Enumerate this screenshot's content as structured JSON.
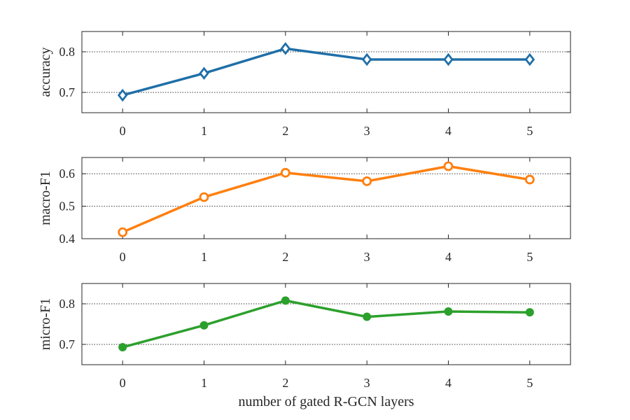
{
  "chart_data": [
    {
      "type": "line",
      "ylabel": "accuracy",
      "xlabel": "",
      "x": [
        0,
        1,
        2,
        3,
        4,
        5
      ],
      "x_ticks": [
        0,
        1,
        2,
        3,
        4,
        5
      ],
      "xlim": [
        -0.5,
        5.5
      ],
      "ylim": [
        0.65,
        0.85
      ],
      "y_ticks": [
        0.7,
        0.8
      ],
      "y_tick_labels": [
        "0.7",
        "0.8"
      ],
      "grid": "horizontal dotted",
      "series": [
        {
          "values": [
            0.693,
            0.747,
            0.808,
            0.781,
            0.781,
            0.781
          ],
          "color": "#1f6fa8",
          "marker": "diamond-open"
        }
      ]
    },
    {
      "type": "line",
      "ylabel": "macro-F1",
      "xlabel": "",
      "x": [
        0,
        1,
        2,
        3,
        4,
        5
      ],
      "x_ticks": [
        0,
        1,
        2,
        3,
        4,
        5
      ],
      "xlim": [
        -0.5,
        5.5
      ],
      "ylim": [
        0.4,
        0.65
      ],
      "y_ticks": [
        0.4,
        0.5,
        0.6
      ],
      "y_tick_labels": [
        "0.4",
        "0.5",
        "0.6"
      ],
      "grid": "horizontal dotted",
      "series": [
        {
          "values": [
            0.42,
            0.528,
            0.603,
            0.577,
            0.623,
            0.582
          ],
          "color": "#ff7f0e",
          "marker": "circle-open"
        }
      ]
    },
    {
      "type": "line",
      "ylabel": "micro-F1",
      "xlabel": "number of gated R-GCN layers",
      "x": [
        0,
        1,
        2,
        3,
        4,
        5
      ],
      "x_ticks": [
        0,
        1,
        2,
        3,
        4,
        5
      ],
      "xlim": [
        -0.5,
        5.5
      ],
      "ylim": [
        0.65,
        0.85
      ],
      "y_ticks": [
        0.7,
        0.8
      ],
      "y_tick_labels": [
        "0.7",
        "0.8"
      ],
      "grid": "horizontal dotted",
      "series": [
        {
          "values": [
            0.693,
            0.747,
            0.808,
            0.768,
            0.781,
            0.779
          ],
          "color": "#2ca02c",
          "marker": "circle-filled"
        }
      ]
    }
  ]
}
